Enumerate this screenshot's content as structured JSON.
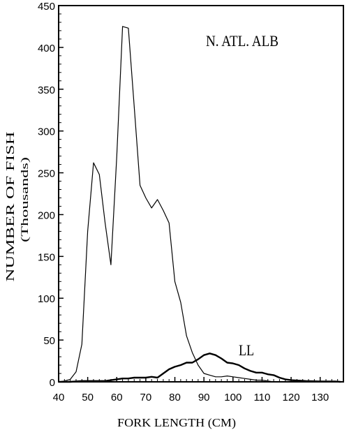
{
  "chart_data": {
    "type": "line",
    "title": "",
    "annotations": [
      "N. ATL. ALB",
      "LL"
    ],
    "xlabel": "FORK LENGTH (CM)",
    "ylabel": "NUMBER OF FISH",
    "ylabel_sub": "(Thousands)",
    "xlim": [
      40,
      138
    ],
    "ylim": [
      0,
      450
    ],
    "xticks": [
      40,
      50,
      60,
      70,
      80,
      90,
      100,
      110,
      120,
      130
    ],
    "yticks": [
      0,
      50,
      100,
      150,
      200,
      250,
      300,
      350,
      400,
      450
    ],
    "grid": false,
    "series": [
      {
        "x": [
          40,
          42,
          44,
          46,
          48,
          50,
          52,
          54,
          56,
          58,
          60,
          62,
          64,
          66,
          68,
          70,
          72,
          74,
          76,
          78,
          80,
          82,
          84,
          86,
          88,
          90,
          92,
          94,
          96,
          98,
          100,
          102,
          104,
          106,
          108,
          110,
          112,
          114,
          116
        ],
        "values": [
          0,
          1,
          3,
          12,
          45,
          180,
          262,
          248,
          190,
          140,
          270,
          425,
          423,
          330,
          235,
          220,
          208,
          218,
          205,
          190,
          120,
          95,
          55,
          35,
          20,
          10,
          8,
          6,
          6,
          7,
          6,
          5,
          4,
          3,
          2,
          2,
          1,
          0,
          0
        ]
      },
      {
        "name": "LL",
        "x": [
          40,
          44,
          48,
          52,
          56,
          58,
          60,
          62,
          64,
          66,
          68,
          70,
          72,
          74,
          76,
          78,
          80,
          82,
          84,
          86,
          88,
          90,
          92,
          94,
          96,
          98,
          100,
          102,
          104,
          106,
          108,
          110,
          112,
          114,
          116,
          118,
          120,
          125,
          130,
          135,
          137
        ],
        "values": [
          0,
          0,
          1,
          1,
          1,
          2,
          3,
          4,
          4,
          5,
          5,
          5,
          6,
          5,
          10,
          15,
          18,
          20,
          23,
          23,
          27,
          32,
          34,
          32,
          28,
          23,
          22,
          20,
          16,
          13,
          11,
          11,
          9,
          8,
          5,
          3,
          2,
          1,
          0.5,
          0.5,
          0
        ]
      }
    ]
  }
}
